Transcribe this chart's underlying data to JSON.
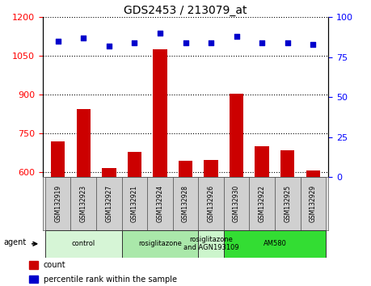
{
  "title": "GDS2453 / 213079_at",
  "samples": [
    "GSM132919",
    "GSM132923",
    "GSM132927",
    "GSM132921",
    "GSM132924",
    "GSM132928",
    "GSM132926",
    "GSM132930",
    "GSM132922",
    "GSM132925",
    "GSM132929"
  ],
  "counts": [
    720,
    845,
    615,
    680,
    1075,
    645,
    648,
    905,
    700,
    685,
    605
  ],
  "percentiles": [
    85,
    87,
    82,
    84,
    90,
    84,
    84,
    88,
    84,
    84,
    83
  ],
  "ylim_left": [
    580,
    1200
  ],
  "ylim_right": [
    0,
    100
  ],
  "yticks_left": [
    600,
    750,
    900,
    1050,
    1200
  ],
  "yticks_right": [
    0,
    25,
    50,
    75,
    100
  ],
  "bar_color": "#cc0000",
  "dot_color": "#0000cc",
  "agent_groups": [
    {
      "label": "control",
      "start": 0,
      "end": 3,
      "color": "#d6f5d6"
    },
    {
      "label": "rosiglitazone",
      "start": 3,
      "end": 6,
      "color": "#aae8aa"
    },
    {
      "label": "rosiglitazone\nand AGN193109",
      "start": 6,
      "end": 7,
      "color": "#ccf5cc"
    },
    {
      "label": "AM580",
      "start": 7,
      "end": 11,
      "color": "#33dd33"
    }
  ],
  "agent_label": "agent",
  "background_color": "#ffffff",
  "tick_label_area_color": "#d0d0d0"
}
